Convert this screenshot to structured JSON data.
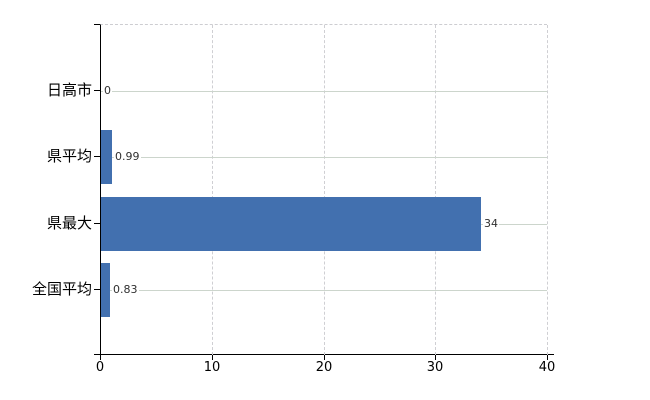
{
  "chart_data": {
    "type": "bar",
    "orientation": "horizontal",
    "title": "",
    "xlabel": "",
    "ylabel": "",
    "categories": [
      "日高市",
      "県平均",
      "県最大",
      "全国平均"
    ],
    "values": [
      0,
      0.99,
      34,
      0.83
    ],
    "value_labels": [
      "0",
      "0.99",
      "34",
      "0.83"
    ],
    "x_ticks": [
      "0",
      "10",
      "20",
      "30",
      "40"
    ],
    "x_tick_values": [
      0,
      10,
      20,
      30,
      40
    ],
    "xlim": [
      0,
      40
    ],
    "grid": true,
    "legend": "none",
    "bar_color": "#4270af",
    "background_color": "#ffffff"
  }
}
